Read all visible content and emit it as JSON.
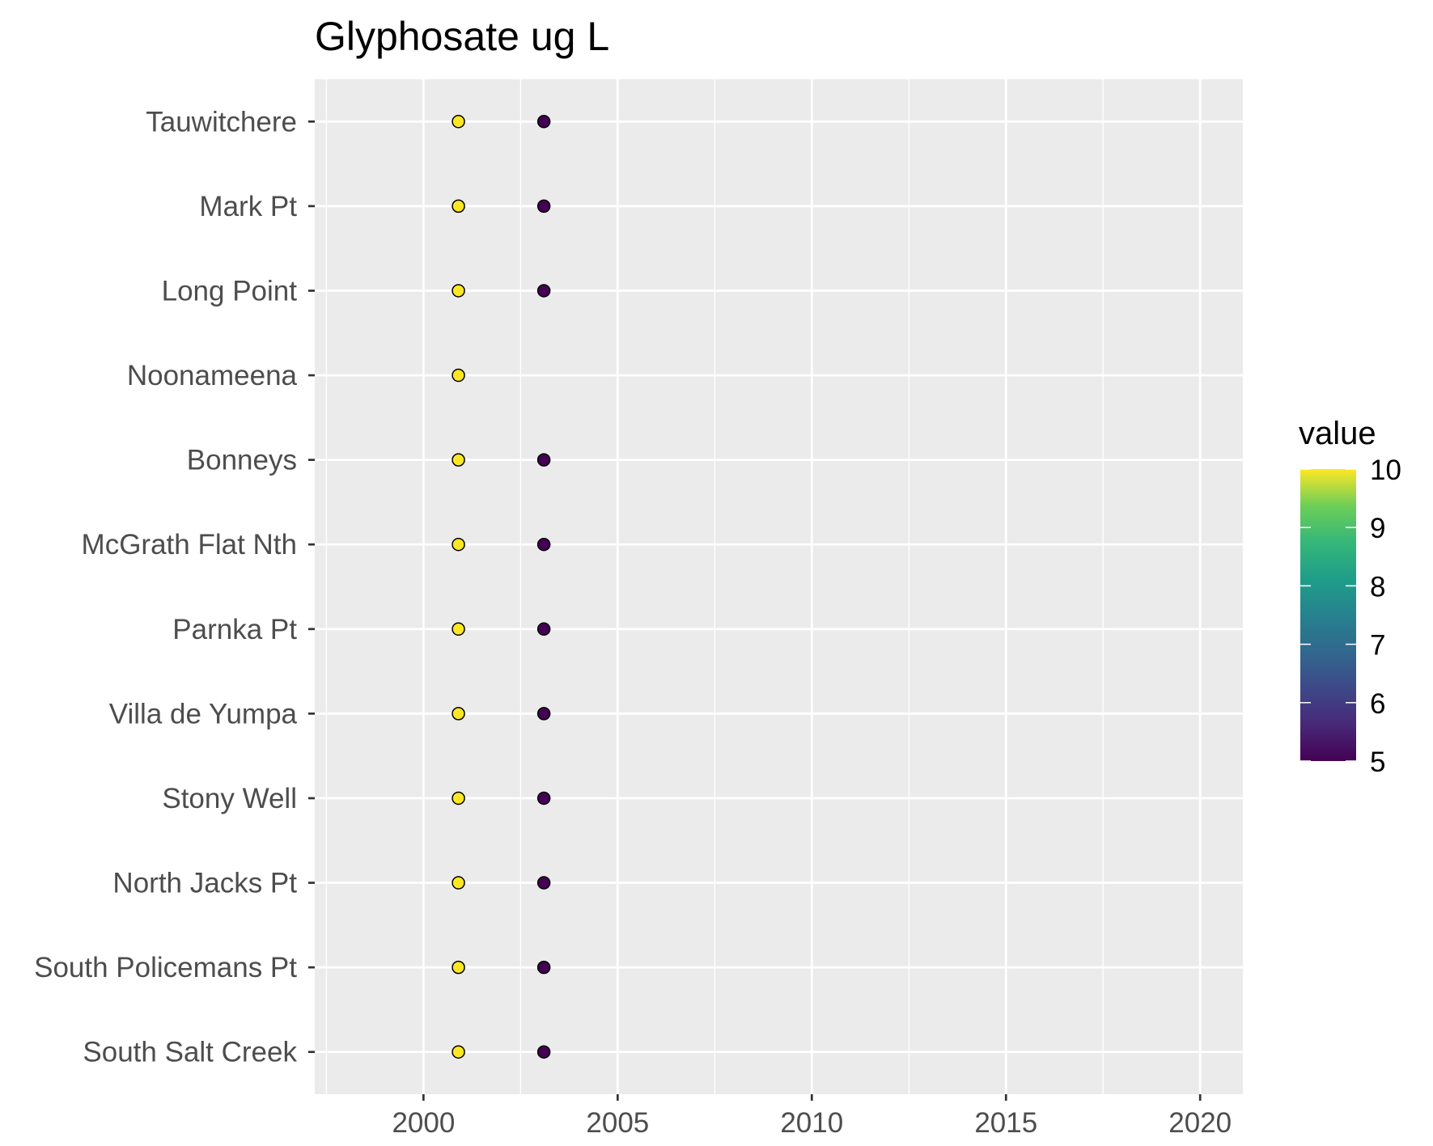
{
  "chart_data": {
    "type": "scatter",
    "title": "Glyphosate ug L",
    "xlabel": "",
    "ylabel": "",
    "xlim": [
      1997.2,
      2021.1
    ],
    "x_ticks": [
      "2000",
      "2005",
      "2010",
      "2015",
      "2020"
    ],
    "x_tick_values": [
      2000,
      2005,
      2010,
      2015,
      2020
    ],
    "categories": [
      "Tauwitchere",
      "Mark Pt",
      "Long Point",
      "Noonameena",
      "Bonneys",
      "McGrath Flat Nth",
      "Parnka Pt",
      "Villa de Yumpa",
      "Stony Well",
      "North Jacks Pt",
      "South Policemans Pt",
      "South Salt Creek"
    ],
    "points": [
      {
        "site": "Tauwitchere",
        "x": 2000.9,
        "value": 10
      },
      {
        "site": "Tauwitchere",
        "x": 2003.1,
        "value": 5
      },
      {
        "site": "Mark Pt",
        "x": 2000.9,
        "value": 10
      },
      {
        "site": "Mark Pt",
        "x": 2003.1,
        "value": 5
      },
      {
        "site": "Long Point",
        "x": 2000.9,
        "value": 10
      },
      {
        "site": "Long Point",
        "x": 2003.1,
        "value": 5
      },
      {
        "site": "Noonameena",
        "x": 2000.9,
        "value": 10
      },
      {
        "site": "Bonneys",
        "x": 2000.9,
        "value": 10
      },
      {
        "site": "Bonneys",
        "x": 2003.1,
        "value": 5
      },
      {
        "site": "McGrath Flat Nth",
        "x": 2000.9,
        "value": 10
      },
      {
        "site": "McGrath Flat Nth",
        "x": 2003.1,
        "value": 5
      },
      {
        "site": "Parnka Pt",
        "x": 2000.9,
        "value": 10
      },
      {
        "site": "Parnka Pt",
        "x": 2003.1,
        "value": 5
      },
      {
        "site": "Villa de Yumpa",
        "x": 2000.9,
        "value": 10
      },
      {
        "site": "Villa de Yumpa",
        "x": 2003.1,
        "value": 5
      },
      {
        "site": "Stony Well",
        "x": 2000.9,
        "value": 10
      },
      {
        "site": "Stony Well",
        "x": 2003.1,
        "value": 5
      },
      {
        "site": "North Jacks Pt",
        "x": 2000.9,
        "value": 10
      },
      {
        "site": "North Jacks Pt",
        "x": 2003.1,
        "value": 5
      },
      {
        "site": "South Policemans Pt",
        "x": 2000.9,
        "value": 10
      },
      {
        "site": "South Policemans Pt",
        "x": 2003.1,
        "value": 5
      },
      {
        "site": "South Salt Creek",
        "x": 2000.9,
        "value": 10
      },
      {
        "site": "South Salt Creek",
        "x": 2003.1,
        "value": 5
      }
    ],
    "legend": {
      "title": "value",
      "position": "right",
      "range": [
        5,
        10
      ],
      "labels": [
        "10",
        "9",
        "8",
        "7",
        "6",
        "5"
      ],
      "label_values": [
        10,
        9,
        8,
        7,
        6,
        5
      ],
      "colormap": "viridis",
      "color_low": "#440154",
      "color_high": "#fde725"
    },
    "grid": true,
    "panel_background": "#ebebeb",
    "grid_color": "#ffffff"
  }
}
